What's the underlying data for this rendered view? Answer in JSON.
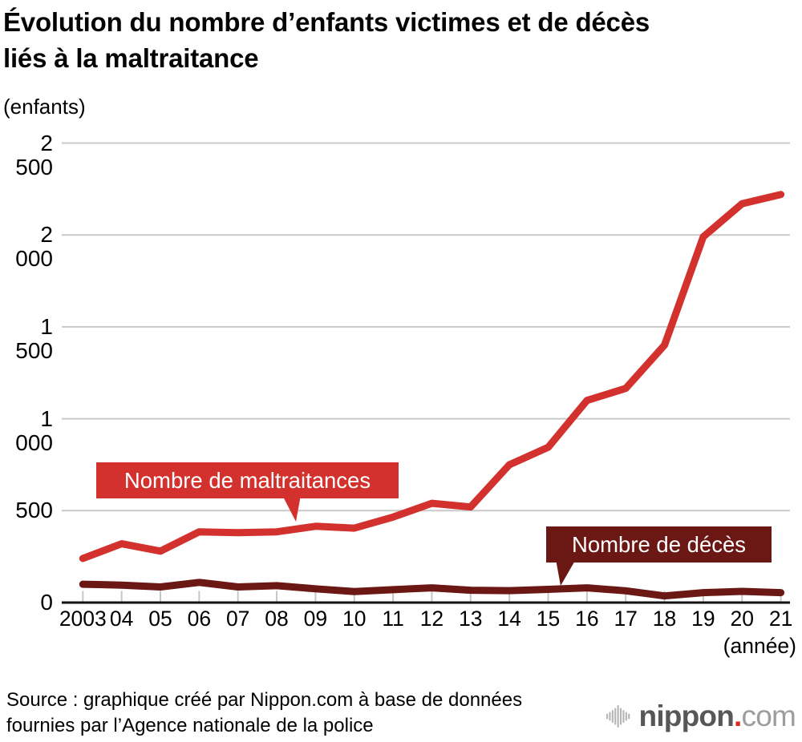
{
  "header": {
    "title_lines": [
      "Évolution du nombre d’enfants victimes et de décès",
      "liés à la maltraitance"
    ]
  },
  "chart_data": {
    "type": "line",
    "title": "Évolution du nombre d’enfants victimes et de décès liés à la maltraitance",
    "y_unit": "(enfants)",
    "x_unit": "(année)",
    "categories": [
      "2003",
      "04",
      "05",
      "06",
      "07",
      "08",
      "09",
      "10",
      "11",
      "12",
      "13",
      "14",
      "15",
      "16",
      "17",
      "18",
      "19",
      "20",
      "21"
    ],
    "series": [
      {
        "name": "Nombre de maltraitances",
        "color": "#d3312d",
        "values": [
          240,
          320,
          280,
          385,
          380,
          385,
          415,
          405,
          465,
          540,
          520,
          750,
          845,
          1100,
          1165,
          1400,
          1990,
          2170,
          2220
        ]
      },
      {
        "name": "Nombre de décès",
        "color": "#6b1713",
        "values": [
          100,
          95,
          85,
          110,
          85,
          92,
          75,
          60,
          70,
          80,
          67,
          65,
          72,
          80,
          64,
          36,
          54,
          61,
          54
        ]
      }
    ],
    "yticks": {
      "values": [
        0,
        500,
        1000,
        1500,
        2000,
        2500
      ],
      "labels": [
        "0",
        "500",
        "1 000",
        "1 500",
        "2 000",
        "2 500"
      ]
    },
    "ylim": [
      0,
      2500
    ],
    "grid": "horizontal-gridlines",
    "legend": "inline-callout-boxes"
  },
  "footer": {
    "source_lines": [
      "Source : graphique créé par Nippon.com à base de données",
      "fournies par l’Agence nationale de la police"
    ],
    "logo": {
      "icon": "equalizer-bars-icon",
      "text_main": "nippon",
      "text_dot": ".",
      "text_tld": "com",
      "color_main": "#585757",
      "color_dot": "#dc2a1e",
      "color_tld": "#9c9d9e",
      "color_bars": "#b4b5b6"
    }
  },
  "style": {
    "gridline_color": "#c9c9c9",
    "tick_color": "#c6c6c6",
    "axis_color": "#111111"
  }
}
